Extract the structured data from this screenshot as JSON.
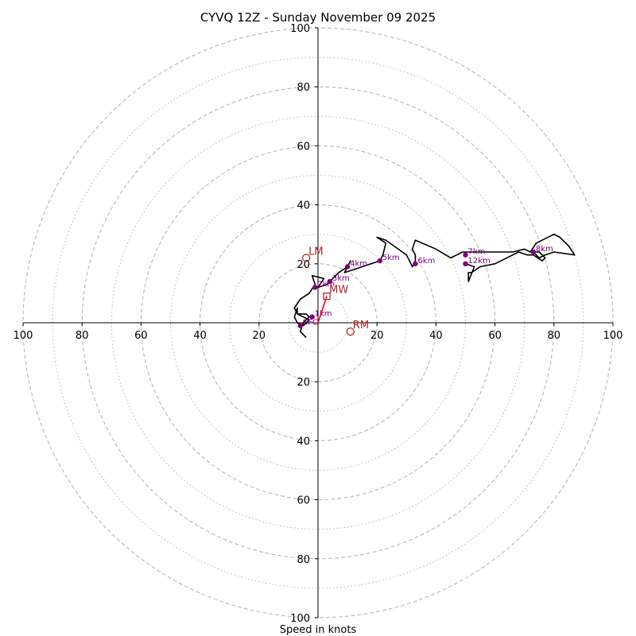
{
  "chart_data": {
    "type": "hodograph",
    "title": "CYVQ 12Z - Sunday November 09 2025",
    "xlabel": "Speed in knots",
    "range_kt": 100,
    "ring_dashed": [
      20,
      40,
      60,
      80,
      100
    ],
    "ring_dotted": [
      10,
      30,
      50,
      70,
      90
    ],
    "x_ticks": [
      "100",
      "80",
      "60",
      "40",
      "20",
      "20",
      "40",
      "60",
      "80",
      "100"
    ],
    "x_tick_values": [
      -100,
      -80,
      -60,
      -40,
      -20,
      20,
      40,
      60,
      80,
      100
    ],
    "y_ticks": [
      "100",
      "80",
      "60",
      "40",
      "20",
      "20",
      "40",
      "60",
      "80",
      "100"
    ],
    "y_tick_values": [
      100,
      80,
      60,
      40,
      20,
      -20,
      -40,
      -60,
      -80,
      -100
    ],
    "colors": {
      "trace": "#000000",
      "markers": "#800080",
      "motion": "#b22222",
      "mean_wind_line": "#ff0000",
      "grid": "#bbbbbb"
    },
    "hodograph_uv": [
      [
        -4,
        -5
      ],
      [
        -6,
        -3
      ],
      [
        -5,
        0
      ],
      [
        -3,
        2
      ],
      [
        -4,
        3
      ],
      [
        -7,
        3
      ],
      [
        -7,
        5
      ],
      [
        -8,
        2
      ],
      [
        -7,
        0
      ],
      [
        -5,
        -1
      ],
      [
        -3,
        1
      ],
      [
        -7,
        3
      ],
      [
        -8,
        5
      ],
      [
        -6,
        8
      ],
      [
        -3,
        10
      ],
      [
        -1,
        13
      ],
      [
        -2,
        16
      ],
      [
        2,
        15
      ],
      [
        0,
        12
      ],
      [
        3,
        13
      ],
      [
        4,
        14
      ],
      [
        7,
        17
      ],
      [
        10,
        19
      ],
      [
        11,
        21
      ],
      [
        9,
        17
      ],
      [
        12,
        18
      ],
      [
        18,
        20
      ],
      [
        21,
        21
      ],
      [
        22,
        23
      ],
      [
        23,
        27
      ],
      [
        20,
        29
      ],
      [
        23,
        28
      ],
      [
        30,
        23
      ],
      [
        32,
        19
      ],
      [
        33,
        21
      ],
      [
        33,
        23
      ],
      [
        32,
        25
      ],
      [
        33,
        28
      ],
      [
        40,
        25
      ],
      [
        45,
        22
      ],
      [
        49,
        24
      ],
      [
        50,
        24
      ],
      [
        52,
        24
      ],
      [
        58,
        24
      ],
      [
        62,
        24
      ],
      [
        66,
        24
      ],
      [
        70,
        25
      ],
      [
        72,
        24
      ],
      [
        74,
        27
      ],
      [
        80,
        30
      ],
      [
        82,
        29
      ],
      [
        85,
        26
      ],
      [
        87,
        23
      ],
      [
        80,
        24
      ],
      [
        77,
        23
      ],
      [
        75,
        22
      ],
      [
        73,
        24
      ],
      [
        75,
        24
      ],
      [
        76,
        23
      ],
      [
        77,
        22
      ],
      [
        76,
        21
      ],
      [
        73,
        23
      ],
      [
        71,
        23
      ],
      [
        68,
        24
      ],
      [
        60,
        20
      ],
      [
        55,
        19
      ],
      [
        52,
        17
      ],
      [
        51,
        17
      ],
      [
        51,
        14
      ],
      [
        53,
        19
      ],
      [
        50,
        20
      ]
    ],
    "height_markers": [
      {
        "label": "SFC",
        "u": -6,
        "v": -1
      },
      {
        "label": "1km",
        "u": -2,
        "v": 2
      },
      {
        "label": "2km",
        "u": -1,
        "v": 12
      },
      {
        "label": "3km",
        "u": 4,
        "v": 14
      },
      {
        "label": "4km",
        "u": 10,
        "v": 19
      },
      {
        "label": "5km",
        "u": 21,
        "v": 21
      },
      {
        "label": "6km",
        "u": 33,
        "v": 20
      },
      {
        "label": "7km",
        "u": 50,
        "v": 23
      },
      {
        "label": "8km",
        "u": 73,
        "v": 24
      },
      {
        "label": "12km",
        "u": 50,
        "v": 20
      }
    ],
    "storm_motion": [
      {
        "label": "LM",
        "u": -4,
        "v": 22,
        "symbol": "circle"
      },
      {
        "label": "MW",
        "u": 3,
        "v": 9,
        "symbol": "square"
      },
      {
        "label": "RM",
        "u": 11,
        "v": -3,
        "symbol": "circle"
      }
    ],
    "mean_wind_line": [
      [
        0,
        0
      ],
      [
        3,
        9
      ]
    ]
  }
}
